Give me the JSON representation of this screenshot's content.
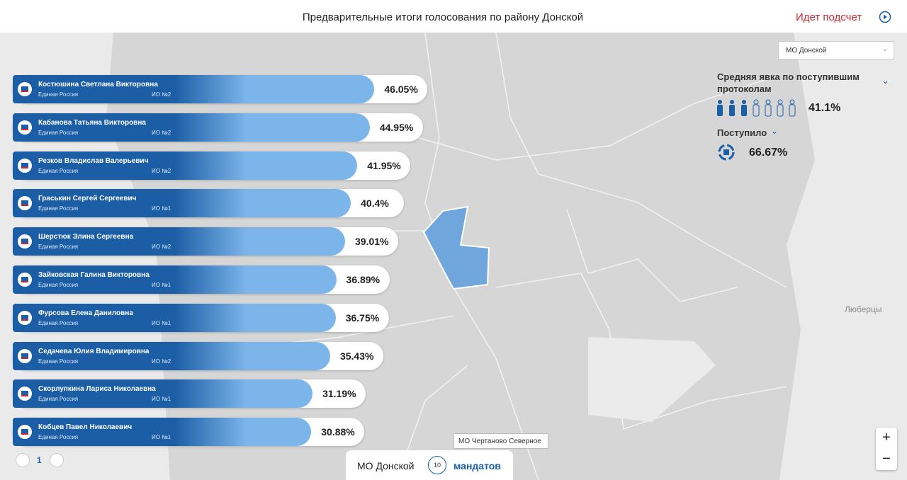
{
  "header": {
    "title": "Предварительные итоги голосования по району Донской",
    "status": "Идет подсчет"
  },
  "selector": "МО Донской",
  "turnout": {
    "title": "Средняя явка по поступившим протоколам",
    "value": "41.1%",
    "received_title": "Поступило",
    "received_value": "66.67%"
  },
  "results": {
    "candidates": [
      {
        "name": "Костюшина Светлана Викторовна",
        "party": "Единая Россия",
        "district": "ИО №2"
      },
      {
        "name": "Кабанова Татьяна Викторовна",
        "party": "Единая Россия",
        "district": "ИО №2"
      },
      {
        "name": "Резков Владислав Валерьевич",
        "party": "Единая Россия",
        "district": "ИО №2"
      },
      {
        "name": "Граськин Сергей Сергеевич",
        "party": "Единая Россия",
        "district": "ИО №1"
      },
      {
        "name": "Шерстюк Элина Сергеевна",
        "party": "Единая Россия",
        "district": "ИО №2"
      },
      {
        "name": "Зайковская Галина Викторовна",
        "party": "Единая Россия",
        "district": "ИО №1"
      },
      {
        "name": "Фурсова Елена Даниловна",
        "party": "Единая Россия",
        "district": "ИО №1"
      },
      {
        "name": "Седачева Юлия Владимировна",
        "party": "Единая Россия",
        "district": "ИО №2"
      },
      {
        "name": "Скорлупкина Лариса Николаевна",
        "party": "Единая Россия",
        "district": "ИО №1"
      },
      {
        "name": "Кобцев Павел Николаевич",
        "party": "Единая Россия",
        "district": "ИО №1"
      }
    ],
    "values": [
      46.05,
      44.95,
      41.95,
      40.4,
      39.01,
      36.89,
      36.75,
      35.43,
      31.19,
      30.88
    ],
    "value_labels": [
      "46.05%",
      "44.95%",
      "41.95%",
      "40.4%",
      "39.01%",
      "36.89%",
      "36.75%",
      "35.43%",
      "31.19%",
      "30.88%"
    ]
  },
  "pagination": {
    "page": "1"
  },
  "footer": {
    "district": "МО Донской",
    "mandates": "10",
    "mandates_label": "мандатов"
  },
  "map": {
    "tooltip": "МО Чертаново Северное",
    "city_label": "Люберцы",
    "zoom_in": "+",
    "zoom_out": "−"
  }
}
